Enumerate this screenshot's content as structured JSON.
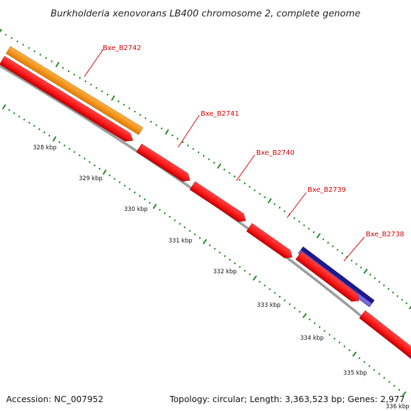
{
  "title": "Burkholderia xenovorans LB400 chromosome 2, complete genome",
  "footer": {
    "accession": "Accession: NC_007952",
    "topology": "Topology: circular; Length: 3,363,523 bp; Genes: 2,977"
  },
  "colors": {
    "forward_gene": "#ff1a1a",
    "forward_gene_dark": "#c00000",
    "orange_feature": "#ff9900",
    "blue_feature": "#1a1a8c",
    "blue_feature_light": "#7a6ad8",
    "backbone": "#8a8a8a",
    "ticks": "#1b8a1b",
    "label_text": "#d40000"
  },
  "ticks": [
    {
      "label": "328 kbp"
    },
    {
      "label": "329 kbp"
    },
    {
      "label": "330 kbp"
    },
    {
      "label": "331 kbp"
    },
    {
      "label": "332 kbp"
    },
    {
      "label": "333 kbp"
    },
    {
      "label": "334 kbp"
    },
    {
      "label": "335 kbp"
    },
    {
      "label": "336 kbp"
    }
  ],
  "genes": [
    {
      "name": "Bxe_B2742"
    },
    {
      "name": "Bxe_B2741"
    },
    {
      "name": "Bxe_B2740"
    },
    {
      "name": "Bxe_B2739"
    },
    {
      "name": "Bxe_B2738"
    }
  ]
}
